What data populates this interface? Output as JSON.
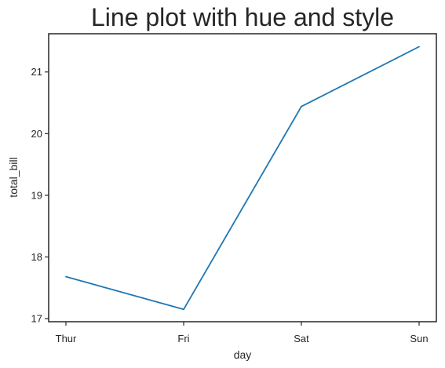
{
  "chart_data": {
    "type": "line",
    "title": "Line plot with hue and style",
    "xlabel": "day",
    "ylabel": "total_bill",
    "categories": [
      "Thur",
      "Fri",
      "Sat",
      "Sun"
    ],
    "series": [
      {
        "values": [
          17.68,
          17.15,
          20.44,
          21.41
        ],
        "color": "#1f77b4"
      }
    ],
    "ylim": [
      16.95,
      21.62
    ],
    "yticks": [
      17,
      18,
      19,
      20,
      21
    ],
    "ytick_labels": [
      "17",
      "18",
      "19",
      "20",
      "21"
    ],
    "grid": false,
    "legend": "none"
  }
}
